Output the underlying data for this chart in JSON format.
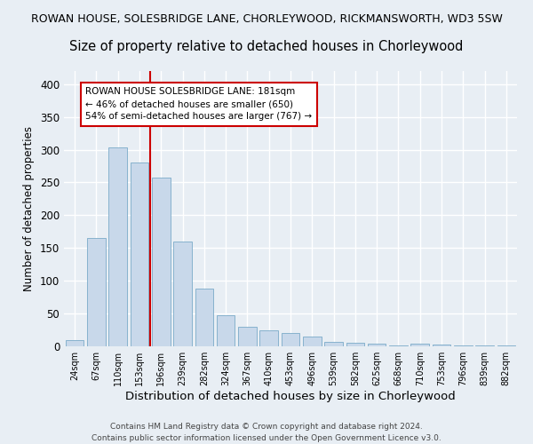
{
  "title1": "ROWAN HOUSE, SOLESBRIDGE LANE, CHORLEYWOOD, RICKMANSWORTH, WD3 5SW",
  "title2": "Size of property relative to detached houses in Chorleywood",
  "xlabel": "Distribution of detached houses by size in Chorleywood",
  "ylabel": "Number of detached properties",
  "categories": [
    "24sqm",
    "67sqm",
    "110sqm",
    "153sqm",
    "196sqm",
    "239sqm",
    "282sqm",
    "324sqm",
    "367sqm",
    "410sqm",
    "453sqm",
    "496sqm",
    "539sqm",
    "582sqm",
    "625sqm",
    "668sqm",
    "710sqm",
    "753sqm",
    "796sqm",
    "839sqm",
    "882sqm"
  ],
  "values": [
    10,
    165,
    303,
    281,
    258,
    160,
    88,
    47,
    30,
    25,
    21,
    15,
    7,
    5,
    4,
    2,
    4,
    3,
    2,
    1,
    1
  ],
  "bar_color": "#c8d8ea",
  "bar_edge_color": "#7aaac8",
  "marker_label": "ROWAN HOUSE SOLESBRIDGE LANE: 181sqm",
  "annotation_line1": "← 46% of detached houses are smaller (650)",
  "annotation_line2": "54% of semi-detached houses are larger (767) →",
  "marker_line_color": "#cc0000",
  "annotation_box_edge": "#cc0000",
  "ylim": [
    0,
    420
  ],
  "yticks": [
    0,
    50,
    100,
    150,
    200,
    250,
    300,
    350,
    400
  ],
  "footer1": "Contains HM Land Registry data © Crown copyright and database right 2024.",
  "footer2": "Contains public sector information licensed under the Open Government Licence v3.0.",
  "bg_color": "#e8eef4",
  "grid_color": "#ffffff",
  "title1_fontsize": 9.0,
  "title2_fontsize": 10.5,
  "xlabel_fontsize": 9.5,
  "ylabel_fontsize": 8.5
}
